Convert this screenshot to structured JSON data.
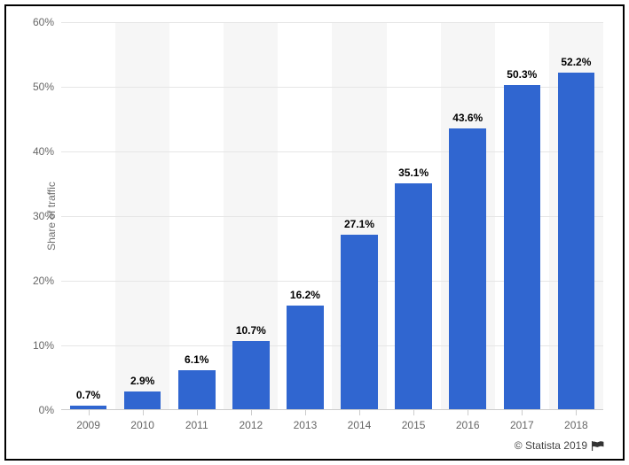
{
  "chart": {
    "type": "bar",
    "y_axis_title": "Share of traffic",
    "categories": [
      "2009",
      "2010",
      "2011",
      "2012",
      "2013",
      "2014",
      "2015",
      "2016",
      "2017",
      "2018"
    ],
    "values": [
      0.7,
      2.9,
      6.1,
      10.7,
      16.2,
      27.1,
      35.1,
      43.6,
      50.3,
      52.2
    ],
    "value_labels": [
      "0.7%",
      "2.9%",
      "6.1%",
      "10.7%",
      "16.2%",
      "27.1%",
      "35.1%",
      "43.6%",
      "50.3%",
      "52.2%"
    ],
    "bar_color": "#3066d0",
    "background_color": "#ffffff",
    "alt_bg_color": "#f6f6f6",
    "grid_color": "#e6e6e6",
    "axis_tick_color": "#cccccc",
    "axis_label_color": "#666666",
    "data_label_color": "#000000",
    "data_label_fontsize": 12,
    "axis_label_fontsize": 12,
    "ylim": [
      0,
      60
    ],
    "yticks": [
      0,
      10,
      20,
      30,
      40,
      50,
      60
    ],
    "ytick_labels": [
      "0%",
      "10%",
      "20%",
      "30%",
      "40%",
      "50%",
      "60%"
    ],
    "bar_width_ratio": 0.68
  },
  "attribution": {
    "text": "© Statista 2019"
  }
}
